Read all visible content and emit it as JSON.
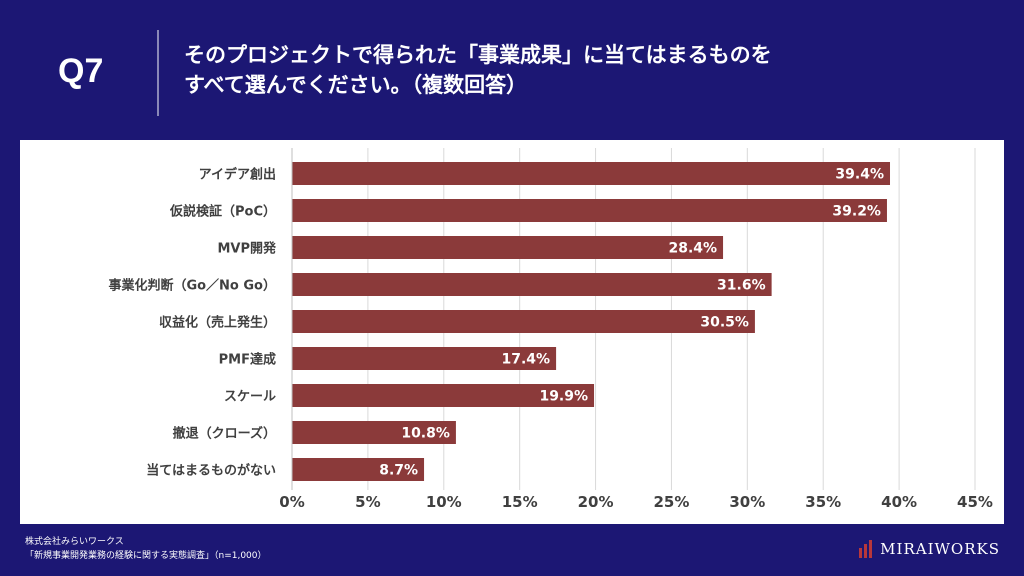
{
  "header": {
    "q_number": "Q7",
    "question_line1": "そのプロジェクトで得られた「事業成果」に当てはまるものを",
    "question_line2": "すべて選んでください。（複数回答）"
  },
  "footer": {
    "company": "株式会社みらいワークス",
    "source": "「新規事業開発業務の経験に関する実態調査」（n=1,000）",
    "logo_text": "MIRAIWORKS"
  },
  "colors": {
    "background": "#1c1774",
    "bar": "#8b3a3a",
    "panel": "#ffffff"
  },
  "chart_data": {
    "type": "bar",
    "orientation": "horizontal",
    "categories": [
      "アイデア創出",
      "仮説検証（PoC）",
      "MVP開発",
      "事業化判断（Go／No Go）",
      "収益化（売上発生）",
      "PMF達成",
      "スケール",
      "撤退（クローズ）",
      "当てはまるものがない"
    ],
    "values": [
      39.4,
      39.2,
      28.4,
      31.6,
      30.5,
      17.4,
      19.9,
      10.8,
      8.7
    ],
    "value_labels": [
      "39.4%",
      "39.2%",
      "28.4%",
      "31.6%",
      "30.5%",
      "17.4%",
      "19.9%",
      "10.8%",
      "8.7%"
    ],
    "x_ticks": [
      "0%",
      "5%",
      "10%",
      "15%",
      "20%",
      "25%",
      "30%",
      "35%",
      "40%",
      "45%"
    ],
    "xlim": [
      0,
      45
    ],
    "grid": true
  }
}
